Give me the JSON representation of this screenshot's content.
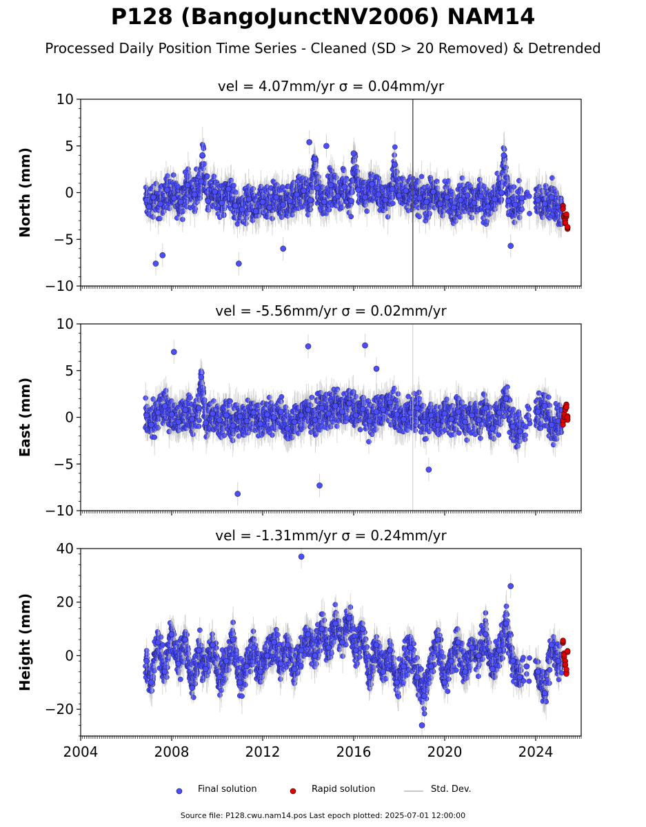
{
  "title": "P128 (BangoJunctNV2006) NAM14",
  "subtitle": "Processed Daily Position Time Series - Cleaned (SD > 20 Removed) & Detrended",
  "chart_data": [
    {
      "type": "scatter",
      "panel": "north",
      "title": "vel = 4.07mm/yr   σ = 0.04mm/yr",
      "ylabel": "North (mm)",
      "xlabel": "",
      "xlim": [
        2004,
        2026
      ],
      "ylim": [
        -10,
        10
      ],
      "yticks": [
        -10,
        -5,
        0,
        5,
        10
      ],
      "ytick_labels": [
        "−10",
        "−5",
        "0",
        "5",
        "10"
      ],
      "vertical_line_x": 2018.6,
      "final_solution": {
        "x": [
          2006.9,
          2007.0,
          2007.2,
          2007.5,
          2007.8,
          2008.1,
          2008.4,
          2008.7,
          2009.0,
          2009.3,
          2009.6,
          2009.9,
          2010.2,
          2010.5,
          2010.8,
          2011.1,
          2011.4,
          2011.7,
          2012.0,
          2012.3,
          2012.6,
          2012.9,
          2013.2,
          2013.5,
          2013.8,
          2014.1,
          2014.4,
          2014.7,
          2015.0,
          2015.3,
          2015.6,
          2015.9,
          2016.2,
          2016.5,
          2016.8,
          2017.1,
          2017.4,
          2017.7,
          2018.0,
          2018.3,
          2018.6,
          2018.9,
          2019.2,
          2019.5,
          2019.8,
          2020.1,
          2020.4,
          2020.7,
          2021.0,
          2021.3,
          2021.6,
          2021.9,
          2022.2,
          2022.5,
          2022.8,
          2023.1,
          2023.4,
          2024.1,
          2024.4,
          2024.7,
          2025.0,
          2025.1,
          2007.3,
          2007.6,
          2009.35,
          2010.95,
          2012.9,
          2014.05,
          2014.3,
          2014.8,
          2016.0,
          2017.8,
          2022.6,
          2022.9
        ],
        "y": [
          -0.8,
          -1.5,
          -0.5,
          -1.2,
          0.3,
          -0.6,
          -1.0,
          0.8,
          -0.2,
          1.2,
          -0.9,
          0.1,
          -1.1,
          0.4,
          -1.4,
          -1.8,
          -0.7,
          -2.0,
          -1.0,
          -1.6,
          -0.5,
          -1.3,
          -0.9,
          -0.2,
          0.2,
          -0.8,
          0.5,
          -1.0,
          0.8,
          -0.4,
          0.6,
          -0.9,
          0.3,
          -0.5,
          0.9,
          -0.2,
          -0.8,
          0.4,
          -0.3,
          0.2,
          0.0,
          -0.6,
          -1.0,
          0.1,
          -1.2,
          -0.5,
          -1.6,
          -0.8,
          -0.3,
          -1.1,
          -0.4,
          -1.5,
          -0.7,
          0.0,
          -0.9,
          -1.3,
          -0.6,
          -0.8,
          -1.2,
          -0.5,
          -1.6,
          -1.9,
          -7.6,
          -6.7,
          4.0,
          -7.6,
          -6.0,
          5.4,
          3.6,
          5.0,
          4.2,
          3.0,
          4.0,
          -5.7
        ],
        "color": "#4b4dff"
      },
      "rapid_solution": {
        "x": [
          2025.2,
          2025.25,
          2025.3,
          2025.35,
          2025.4
        ],
        "y": [
          -1.6,
          -2.4,
          -3.0,
          -2.6,
          -3.8
        ],
        "color": "#e00000"
      }
    },
    {
      "type": "scatter",
      "panel": "east",
      "title": "vel = -5.56mm/yr   σ = 0.02mm/yr",
      "ylabel": "East (mm)",
      "xlabel": "",
      "xlim": [
        2004,
        2026
      ],
      "ylim": [
        -10,
        10
      ],
      "yticks": [
        -10,
        -5,
        0,
        5,
        10
      ],
      "ytick_labels": [
        "−10",
        "−5",
        "0",
        "5",
        "10"
      ],
      "vertical_line_x": 2018.6,
      "final_solution": {
        "x": [
          2006.9,
          2007.1,
          2007.4,
          2007.7,
          2008.0,
          2008.3,
          2008.6,
          2008.9,
          2009.2,
          2009.5,
          2009.8,
          2010.1,
          2010.4,
          2010.7,
          2011.0,
          2011.3,
          2011.6,
          2011.9,
          2012.2,
          2012.5,
          2012.8,
          2013.1,
          2013.4,
          2013.7,
          2014.0,
          2014.3,
          2014.6,
          2014.9,
          2015.2,
          2015.5,
          2015.8,
          2016.1,
          2016.4,
          2016.7,
          2017.0,
          2017.3,
          2017.6,
          2017.9,
          2018.2,
          2018.5,
          2018.8,
          2019.1,
          2019.4,
          2019.7,
          2020.0,
          2020.3,
          2020.6,
          2020.9,
          2021.2,
          2021.5,
          2021.8,
          2022.1,
          2022.4,
          2022.7,
          2023.0,
          2023.3,
          2024.1,
          2024.4,
          2024.7,
          2025.0,
          2008.1,
          2009.3,
          2010.9,
          2014.0,
          2014.5,
          2016.5,
          2017.0,
          2019.3
        ],
        "y": [
          0.2,
          -0.8,
          0.5,
          1.2,
          0.3,
          -0.5,
          0.8,
          -0.2,
          1.0,
          -0.6,
          0.4,
          -0.3,
          0.2,
          -0.9,
          0.1,
          -0.4,
          0.5,
          -0.7,
          0.3,
          0.0,
          0.6,
          -1.2,
          -0.5,
          0.2,
          0.8,
          -0.3,
          1.0,
          0.4,
          1.2,
          0.6,
          1.5,
          0.2,
          0.9,
          -0.4,
          0.6,
          0.8,
          1.6,
          0.3,
          -0.2,
          0.5,
          1.0,
          -0.5,
          0.2,
          -0.8,
          0.4,
          -0.2,
          0.6,
          -0.5,
          0.2,
          -0.3,
          1.0,
          -1.2,
          0.5,
          2.0,
          -1.0,
          -1.5,
          0.6,
          1.2,
          -0.8,
          -0.4,
          7.0,
          4.3,
          -8.2,
          7.6,
          -7.3,
          7.7,
          5.2,
          -5.6
        ],
        "color": "#4b4dff"
      },
      "rapid_solution": {
        "x": [
          2025.2,
          2025.25,
          2025.3,
          2025.35,
          2025.4
        ],
        "y": [
          -0.5,
          0.2,
          0.8,
          1.2,
          0.0
        ],
        "color": "#e00000"
      }
    },
    {
      "type": "scatter",
      "panel": "height",
      "title": "vel = -1.31mm/yr   σ = 0.24mm/yr",
      "ylabel": "Height (mm)",
      "xlabel": "",
      "xlim": [
        2004,
        2026
      ],
      "ylim": [
        -30,
        40
      ],
      "yticks": [
        -20,
        0,
        20,
        40
      ],
      "ytick_labels": [
        "−20",
        "0",
        "20",
        "40"
      ],
      "xticks": [
        2004,
        2008,
        2012,
        2016,
        2020,
        2024
      ],
      "xtick_labels": [
        "2004",
        "2008",
        "2012",
        "2016",
        "2020",
        "2024"
      ],
      "final_solution": {
        "x": [
          2006.9,
          2007.1,
          2007.4,
          2007.7,
          2008.0,
          2008.3,
          2008.6,
          2008.9,
          2009.2,
          2009.5,
          2009.8,
          2010.1,
          2010.4,
          2010.7,
          2011.0,
          2011.3,
          2011.6,
          2011.9,
          2012.2,
          2012.5,
          2012.8,
          2013.1,
          2013.4,
          2013.7,
          2014.0,
          2014.3,
          2014.6,
          2014.9,
          2015.2,
          2015.5,
          2015.8,
          2016.1,
          2016.4,
          2016.7,
          2017.0,
          2017.3,
          2017.6,
          2017.9,
          2018.2,
          2018.5,
          2018.8,
          2019.1,
          2019.4,
          2019.7,
          2020.0,
          2020.3,
          2020.6,
          2020.9,
          2021.2,
          2021.5,
          2021.8,
          2022.1,
          2022.4,
          2022.7,
          2023.0,
          2023.3,
          2023.6,
          2024.1,
          2024.4,
          2024.7,
          2025.0,
          2013.7,
          2022.9,
          2019.0
        ],
        "y": [
          -2,
          -10,
          5,
          -6,
          8,
          -3,
          6,
          -12,
          2,
          -5,
          4,
          -8,
          -2,
          6,
          -10,
          -4,
          3,
          -6,
          0,
          5,
          -3,
          4,
          -5,
          2,
          8,
          0,
          10,
          3,
          12,
          5,
          14,
          2,
          10,
          -8,
          4,
          -6,
          2,
          -10,
          -4,
          3,
          -8,
          -15,
          -4,
          6,
          -10,
          -2,
          5,
          -6,
          3,
          0,
          8,
          -5,
          2,
          12,
          -2,
          -8,
          -4,
          -6,
          -14,
          4,
          -2,
          37,
          26,
          -26
        ],
        "color": "#4b4dff"
      },
      "rapid_solution": {
        "x": [
          2025.2,
          2025.25,
          2025.3,
          2025.35,
          2025.4
        ],
        "y": [
          5,
          0,
          -3,
          -6,
          2
        ],
        "color": "#e00000"
      }
    }
  ],
  "legend": {
    "final": "Final solution",
    "rapid": "Rapid solution",
    "std": "Std. Dev."
  },
  "footer": "Source file: P128.cwu.nam14.pos  Last epoch plotted: 2025-07-01 12:00:00",
  "colors": {
    "final": "#4b4dff",
    "rapid": "#e00000",
    "stddev": "#b8b8b8"
  }
}
